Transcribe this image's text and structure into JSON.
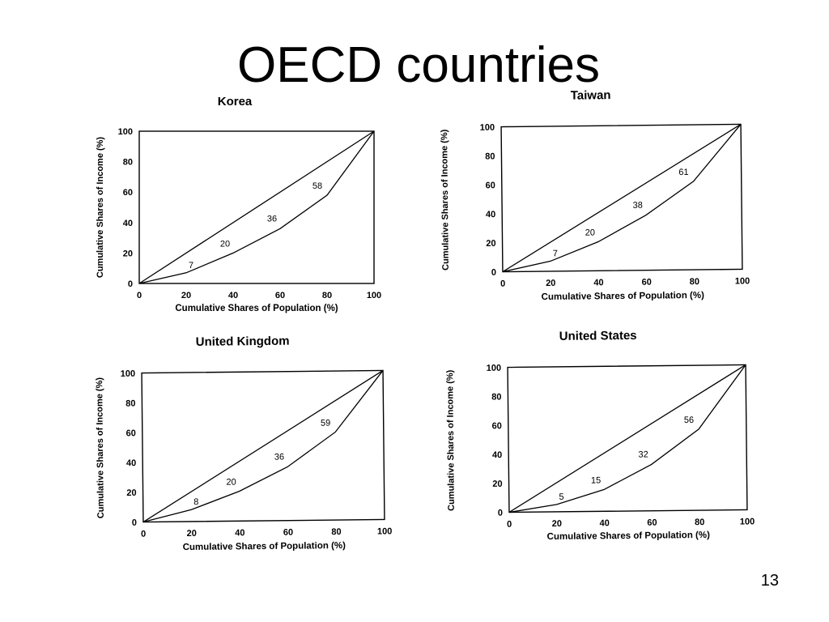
{
  "slide": {
    "title": "OECD countries",
    "page_number": "13"
  },
  "chart_data": [
    {
      "type": "line",
      "title": "Korea",
      "xlabel": "Cumulative Shares of Population (%)",
      "ylabel": "Cumulative Shares of Income (%)",
      "xlim": [
        0,
        100
      ],
      "ylim": [
        0,
        100
      ],
      "x_ticks": [
        "0",
        "20",
        "40",
        "60",
        "80",
        "100"
      ],
      "y_ticks": [
        "0",
        "20",
        "40",
        "60",
        "80",
        "100"
      ],
      "grid": false,
      "series": [
        {
          "x": [
            0,
            100
          ],
          "y": [
            0,
            100
          ]
        },
        {
          "x": [
            0,
            20,
            40,
            60,
            80,
            100
          ],
          "y": [
            0,
            7,
            20,
            36,
            58,
            100
          ],
          "labels": [
            "7",
            "20",
            "36",
            "58"
          ]
        }
      ]
    },
    {
      "type": "line",
      "title": "Taiwan",
      "xlabel": "Cumulative Shares of Population (%)",
      "ylabel": "Cumulative Shares of Income (%)",
      "xlim": [
        0,
        100
      ],
      "ylim": [
        0,
        100
      ],
      "x_ticks": [
        "0",
        "20",
        "40",
        "60",
        "80",
        "100"
      ],
      "y_ticks": [
        "0",
        "20",
        "40",
        "60",
        "80",
        "100"
      ],
      "grid": false,
      "series": [
        {
          "x": [
            0,
            100
          ],
          "y": [
            0,
            100
          ]
        },
        {
          "x": [
            0,
            20,
            40,
            60,
            80,
            100
          ],
          "y": [
            0,
            7,
            20,
            38,
            61,
            100
          ],
          "labels": [
            "7",
            "20",
            "38",
            "61"
          ]
        }
      ]
    },
    {
      "type": "line",
      "title": "United Kingdom",
      "xlabel": "Cumulative Shares of Population (%)",
      "ylabel": "Cumulative Shares of Income (%)",
      "xlim": [
        0,
        100
      ],
      "ylim": [
        0,
        100
      ],
      "x_ticks": [
        "0",
        "20",
        "40",
        "60",
        "80",
        "100"
      ],
      "y_ticks": [
        "0",
        "20",
        "40",
        "60",
        "80",
        "100"
      ],
      "grid": false,
      "series": [
        {
          "x": [
            0,
            100
          ],
          "y": [
            0,
            100
          ]
        },
        {
          "x": [
            0,
            20,
            40,
            60,
            80,
            100
          ],
          "y": [
            0,
            8,
            20,
            36,
            59,
            100
          ],
          "labels": [
            "8",
            "20",
            "36",
            "59"
          ]
        }
      ]
    },
    {
      "type": "line",
      "title": "United States",
      "xlabel": "Cumulative Shares of Population (%)",
      "ylabel": "Cumulative Shares of Income (%)",
      "xlim": [
        0,
        100
      ],
      "ylim": [
        0,
        100
      ],
      "x_ticks": [
        "0",
        "20",
        "40",
        "60",
        "80",
        "100"
      ],
      "y_ticks": [
        "0",
        "20",
        "40",
        "60",
        "80",
        "100"
      ],
      "grid": false,
      "series": [
        {
          "x": [
            0,
            100
          ],
          "y": [
            0,
            100
          ]
        },
        {
          "x": [
            0,
            20,
            40,
            60,
            80,
            100
          ],
          "y": [
            0,
            5,
            15,
            32,
            56,
            100
          ],
          "labels": [
            "5",
            "15",
            "32",
            "56"
          ]
        }
      ]
    }
  ]
}
